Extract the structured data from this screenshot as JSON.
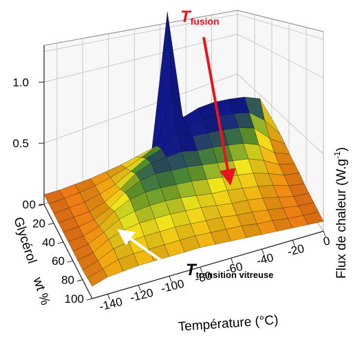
{
  "chart_data": {
    "type": "surface3d",
    "colors": {
      "low": "#e6321e",
      "mid": "#f0a010",
      "peak_yellow": "#f2e61c",
      "green": "#4a8a30",
      "high": "#10188a",
      "annotation_red": "#e8141e",
      "annotation_white": "#ffffff"
    },
    "z_axis": {
      "label": "Flux de chaleur (W.g⁻¹)",
      "label_base": "Flux de chaleur (W.g",
      "label_sup": "-1",
      "label_end": ")",
      "range": [
        0,
        1.3
      ],
      "ticks": [
        "0",
        "0.5",
        "1.0"
      ]
    },
    "x_axis": {
      "label": "Température (°C)",
      "range": [
        -150,
        0
      ],
      "ticks": [
        "-140",
        "-120",
        "-100",
        "-80",
        "-60",
        "-40",
        "-20",
        "0"
      ]
    },
    "y_axis": {
      "label_word": "Glycérol",
      "label_unit": "wt %",
      "range": [
        0,
        100
      ],
      "ticks": [
        "0",
        "20",
        "40",
        "60",
        "80",
        "100"
      ]
    },
    "annotations": {
      "fusion": {
        "T": "T",
        "sub": "fusion"
      },
      "glass": {
        "T": "T",
        "sub": "transition vitreuse"
      }
    },
    "temperatures": [
      -150,
      -140,
      -130,
      -120,
      -110,
      -100,
      -90,
      -80,
      -70,
      -60,
      -50,
      -40,
      -30,
      -20,
      -10,
      0
    ],
    "glycerol_wt": [
      0,
      10,
      20,
      30,
      40,
      50,
      60,
      70,
      80,
      90,
      100
    ],
    "heat_flow": [
      [
        0.08,
        0.08,
        0.09,
        0.1,
        0.12,
        0.14,
        0.17,
        0.2,
        1.28,
        0.38,
        0.42,
        0.43,
        0.42,
        0.4,
        0.35,
        0.1
      ],
      [
        0.08,
        0.09,
        0.1,
        0.12,
        0.15,
        0.19,
        0.24,
        0.3,
        0.7,
        0.38,
        0.4,
        0.4,
        0.38,
        0.35,
        0.25,
        0.1
      ],
      [
        0.08,
        0.09,
        0.1,
        0.13,
        0.17,
        0.24,
        0.31,
        0.35,
        0.45,
        0.38,
        0.37,
        0.36,
        0.34,
        0.3,
        0.18,
        0.1
      ],
      [
        0.08,
        0.09,
        0.1,
        0.14,
        0.21,
        0.3,
        0.35,
        0.36,
        0.37,
        0.34,
        0.33,
        0.31,
        0.29,
        0.24,
        0.14,
        0.09
      ],
      [
        0.08,
        0.09,
        0.11,
        0.17,
        0.26,
        0.32,
        0.34,
        0.33,
        0.32,
        0.3,
        0.28,
        0.26,
        0.24,
        0.19,
        0.12,
        0.09
      ],
      [
        0.08,
        0.09,
        0.13,
        0.22,
        0.28,
        0.3,
        0.3,
        0.29,
        0.28,
        0.26,
        0.24,
        0.22,
        0.2,
        0.16,
        0.11,
        0.09
      ],
      [
        0.08,
        0.1,
        0.16,
        0.23,
        0.26,
        0.27,
        0.27,
        0.26,
        0.24,
        0.22,
        0.21,
        0.19,
        0.17,
        0.14,
        0.1,
        0.08
      ],
      [
        0.08,
        0.11,
        0.18,
        0.22,
        0.24,
        0.24,
        0.24,
        0.23,
        0.22,
        0.2,
        0.18,
        0.17,
        0.15,
        0.12,
        0.09,
        0.08
      ],
      [
        0.08,
        0.12,
        0.18,
        0.2,
        0.21,
        0.21,
        0.21,
        0.2,
        0.19,
        0.18,
        0.16,
        0.15,
        0.13,
        0.11,
        0.09,
        0.08
      ],
      [
        0.09,
        0.13,
        0.17,
        0.18,
        0.18,
        0.18,
        0.18,
        0.18,
        0.17,
        0.16,
        0.15,
        0.13,
        0.12,
        0.1,
        0.09,
        0.08
      ],
      [
        0.1,
        0.14,
        0.15,
        0.16,
        0.16,
        0.16,
        0.16,
        0.16,
        0.15,
        0.14,
        0.13,
        0.12,
        0.11,
        0.1,
        0.09,
        0.08
      ]
    ]
  }
}
